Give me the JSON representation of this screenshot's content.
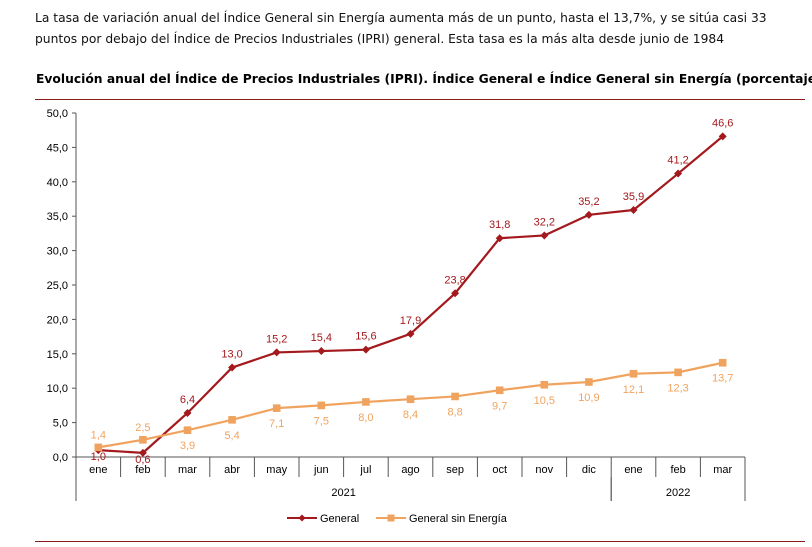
{
  "intro_text": "La tasa de variación anual del Índice General sin Energía aumenta más de un punto, hasta el 13,7%, y se sitúa casi 33 puntos por debajo del Índice de Precios Industriales (IPRI) general. Esta tasa es la más alta desde junio de 1984",
  "chart_data": {
    "type": "line",
    "title": "Evolución anual del Índice de Precios Industriales (IPRI). Índice General e Índice General sin Energía (porcentaje)",
    "categories": [
      "ene",
      "feb",
      "mar",
      "abr",
      "may",
      "jun",
      "jul",
      "ago",
      "sep",
      "oct",
      "nov",
      "dic",
      "ene",
      "feb",
      "mar"
    ],
    "year_groups": [
      {
        "label": "2021",
        "start": 0,
        "end": 11
      },
      {
        "label": "2022",
        "start": 12,
        "end": 14
      }
    ],
    "y_ticks": [
      "0,0",
      "5,0",
      "10,0",
      "15,0",
      "20,0",
      "25,0",
      "30,0",
      "35,0",
      "40,0",
      "45,0",
      "50,0"
    ],
    "ylim": [
      0,
      50
    ],
    "grid": false,
    "legend_position": "bottom",
    "series": [
      {
        "name": "General",
        "color": "#a3191d",
        "marker": "diamond",
        "values": [
          1.0,
          0.6,
          6.4,
          13.0,
          15.2,
          15.4,
          15.6,
          17.9,
          23.8,
          31.8,
          32.2,
          35.2,
          35.9,
          41.2,
          46.6
        ],
        "labels": [
          "1,0",
          "0,6",
          "6,4",
          "13,0",
          "15,2",
          "15,4",
          "15,6",
          "17,9",
          "23,8",
          "31,8",
          "32,2",
          "35,2",
          "35,9",
          "41,2",
          "46,6"
        ]
      },
      {
        "name": "General sin Energía",
        "color": "#f0a35e",
        "marker": "square",
        "values": [
          1.4,
          2.5,
          3.9,
          5.4,
          7.1,
          7.5,
          8.0,
          8.4,
          8.8,
          9.7,
          10.5,
          10.9,
          12.1,
          12.3,
          13.7
        ],
        "labels": [
          "1,4",
          "2,5",
          "3,9",
          "5,4",
          "7,1",
          "7,5",
          "8,0",
          "8,4",
          "8,8",
          "9,7",
          "10,5",
          "10,9",
          "12,1",
          "12,3",
          "13,7"
        ]
      }
    ]
  }
}
